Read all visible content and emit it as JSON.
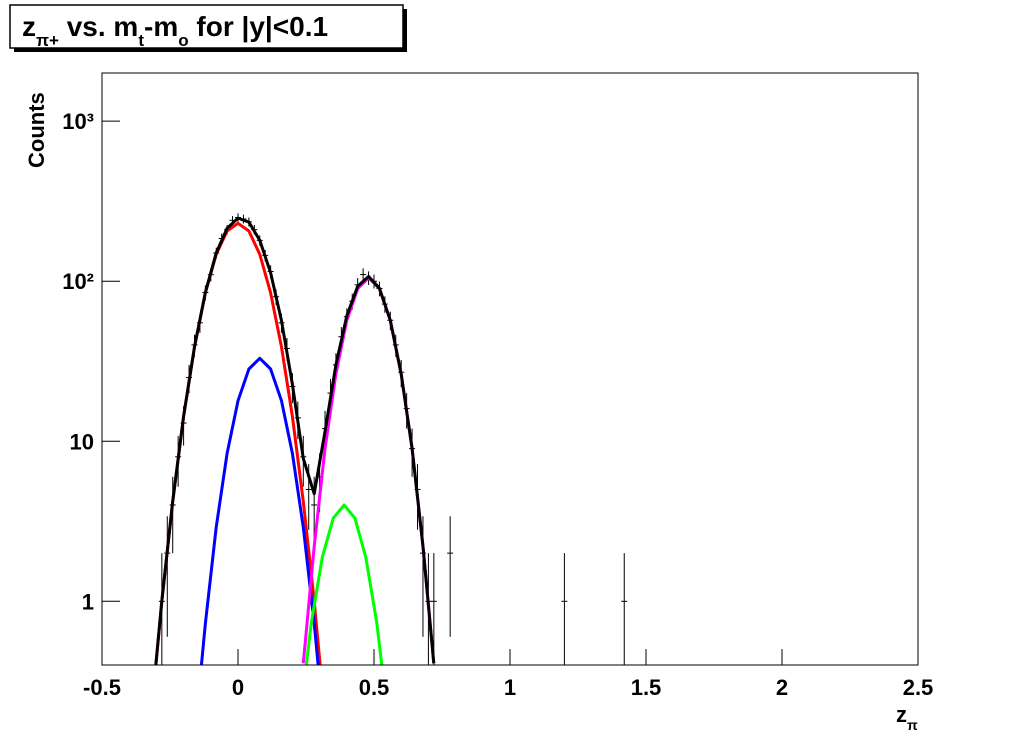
{
  "chart_data": {
    "type": "line",
    "title_parts": [
      {
        "text": "z"
      },
      {
        "text": "π+",
        "sub": true
      },
      {
        "text": " vs. m"
      },
      {
        "text": "t",
        "sub": true
      },
      {
        "text": "-m"
      },
      {
        "text": "o",
        "sub": true
      },
      {
        "text": " for |y|<0.1"
      }
    ],
    "y_label": "Counts",
    "x_label_parts": [
      {
        "text": "z"
      },
      {
        "text": "π",
        "sub": true
      }
    ],
    "log_y": true,
    "xlim": [
      -0.5,
      2.5
    ],
    "xticks": [
      -0.5,
      0,
      0.5,
      1,
      1.5,
      2,
      2.5
    ],
    "ylim": [
      0.4,
      2000
    ],
    "yticks": [
      1,
      10,
      {
        "value": 100,
        "label": "10²"
      },
      {
        "value": 1000,
        "label": "10³"
      }
    ],
    "series": [
      {
        "style": "points",
        "color": "#000000",
        "x": [
          -0.28,
          -0.26,
          -0.24,
          -0.22,
          -0.2,
          -0.18,
          -0.16,
          -0.14,
          -0.12,
          -0.1,
          -0.08,
          -0.06,
          -0.04,
          -0.02,
          0,
          0.02,
          0.04,
          0.06,
          0.08,
          0.1,
          0.12,
          0.14,
          0.16,
          0.18,
          0.2,
          0.22,
          0.24,
          0.26,
          0.28,
          0.3,
          0.32,
          0.34,
          0.36,
          0.38,
          0.4,
          0.42,
          0.44,
          0.46,
          0.48,
          0.5,
          0.52,
          0.54,
          0.56,
          0.58,
          0.6,
          0.62,
          0.64,
          0.66,
          0.68,
          0.7,
          0.72,
          0.78,
          1.2,
          1.42
        ],
        "values": [
          1,
          2,
          4,
          8,
          13,
          25,
          40,
          55,
          85,
          110,
          150,
          185,
          210,
          240,
          250,
          245,
          235,
          210,
          180,
          145,
          115,
          80,
          55,
          38,
          22,
          14,
          8,
          5,
          4,
          6,
          12,
          20,
          30,
          45,
          60,
          75,
          95,
          110,
          105,
          100,
          90,
          72,
          57,
          40,
          27,
          16,
          9,
          5,
          2,
          1,
          1,
          2,
          1,
          1
        ],
        "errors": [
          1,
          1.4,
          2,
          2.8,
          3.6,
          5,
          6.3,
          7.4,
          9.2,
          10.5,
          12.2,
          13.6,
          14.5,
          15.5,
          15.8,
          15.7,
          15.3,
          14.5,
          13.4,
          12,
          10.7,
          8.9,
          7.4,
          6.2,
          4.7,
          3.7,
          2.8,
          2.2,
          2,
          2.4,
          3.5,
          4.5,
          5.5,
          6.7,
          7.7,
          8.7,
          9.7,
          10.5,
          10.2,
          10,
          9.5,
          8.5,
          7.5,
          6.3,
          5.2,
          4,
          3,
          2.2,
          1.4,
          1,
          1,
          1.4,
          1,
          1
        ]
      },
      {
        "style": "line",
        "color": "#ff0000",
        "x": [
          -0.32,
          -0.28,
          -0.24,
          -0.2,
          -0.16,
          -0.12,
          -0.08,
          -0.04,
          0,
          0.04,
          0.08,
          0.12,
          0.16,
          0.2,
          0.24,
          0.28,
          0.32
        ],
        "values": [
          0.19,
          1.0,
          4.2,
          14.3,
          38.8,
          84.6,
          147,
          206,
          230,
          206,
          147,
          84.6,
          38.8,
          14.3,
          4.2,
          1.0,
          0.19
        ]
      },
      {
        "style": "line",
        "color": "#0000ff",
        "x": [
          -0.16,
          -0.12,
          -0.08,
          -0.04,
          0,
          0.04,
          0.08,
          0.12,
          0.16,
          0.2,
          0.24,
          0.28,
          0.32
        ],
        "values": [
          0.14,
          0.73,
          2.9,
          8.4,
          17.9,
          28.3,
          33,
          28.3,
          17.9,
          8.4,
          2.9,
          0.73,
          0.14
        ]
      },
      {
        "style": "line",
        "color": "#00ff00",
        "x": [
          0.23,
          0.27,
          0.31,
          0.35,
          0.39,
          0.43,
          0.47,
          0.51,
          0.55
        ],
        "values": [
          0.2,
          0.74,
          1.88,
          3.3,
          4,
          3.3,
          1.88,
          0.74,
          0.2
        ]
      },
      {
        "style": "line",
        "color": "#ff00ff",
        "x": [
          0.24,
          0.28,
          0.32,
          0.36,
          0.4,
          0.44,
          0.48,
          0.52,
          0.56,
          0.6,
          0.64,
          0.68,
          0.72
        ],
        "values": [
          0.41,
          2.2,
          9.0,
          26.3,
          56.8,
          90,
          105,
          90,
          56.8,
          26.3,
          9.0,
          2.2,
          0.41
        ]
      },
      {
        "style": "line",
        "color": "#000000",
        "x": [
          -0.32,
          -0.28,
          -0.24,
          -0.2,
          -0.16,
          -0.12,
          -0.08,
          -0.04,
          0,
          0.04,
          0.08,
          0.12,
          0.16,
          0.2,
          0.24,
          0.28,
          0.32,
          0.36,
          0.4,
          0.44,
          0.48,
          0.52,
          0.56,
          0.6,
          0.64,
          0.68,
          0.72
        ],
        "values": [
          0.19,
          1.0,
          4.2,
          14.3,
          38.9,
          85.3,
          150,
          214,
          248,
          234,
          180,
          113,
          56.7,
          22.7,
          7.8,
          4.7,
          11.5,
          30,
          60.8,
          93,
          107,
          90.5,
          57,
          26.3,
          9.0,
          2.2,
          0.41
        ]
      }
    ]
  }
}
